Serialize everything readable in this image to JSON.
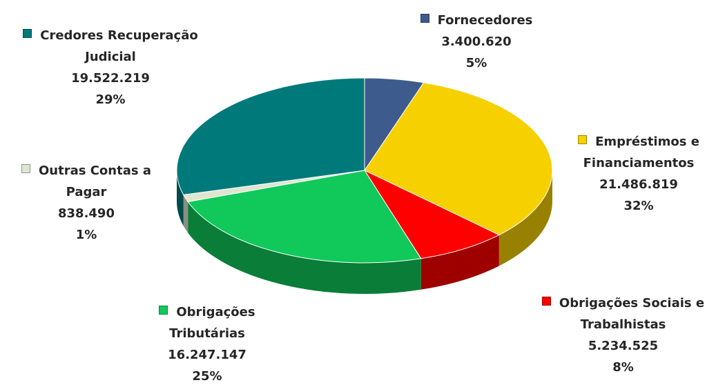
{
  "chart_data": {
    "type": "pie3d",
    "categories": [
      "Fornecedores",
      "Empréstimos e Financiamentos",
      "Obrigações Sociais e Trabalhistas",
      "Obrigações Tributárias",
      "Outras Contas a Pagar",
      "Credores Recuperação Judicial"
    ],
    "values": [
      3400620,
      21486819,
      5234525,
      16247147,
      838490,
      19522219
    ],
    "value_labels": [
      "3.400.620",
      "21.486.819",
      "5.234.525",
      "16.247.147",
      "838.490",
      "19.522.219"
    ],
    "percent_labels": [
      "5%",
      "32%",
      "8%",
      "25%",
      "1%",
      "29%"
    ],
    "colors": [
      "#3d5b8c",
      "#f7d000",
      "#ff0000",
      "#10c95a",
      "#dfe6cf",
      "#00797b"
    ]
  }
}
